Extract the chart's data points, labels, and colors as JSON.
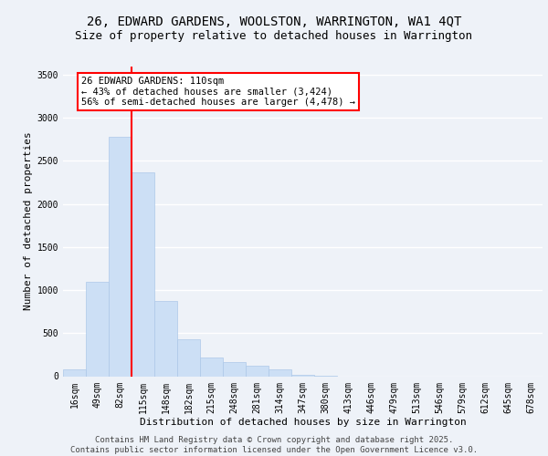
{
  "title_line1": "26, EDWARD GARDENS, WOOLSTON, WARRINGTON, WA1 4QT",
  "title_line2": "Size of property relative to detached houses in Warrington",
  "xlabel": "Distribution of detached houses by size in Warrington",
  "ylabel": "Number of detached properties",
  "footer_line1": "Contains HM Land Registry data © Crown copyright and database right 2025.",
  "footer_line2": "Contains public sector information licensed under the Open Government Licence v3.0.",
  "categories": [
    "16sqm",
    "49sqm",
    "82sqm",
    "115sqm",
    "148sqm",
    "182sqm",
    "215sqm",
    "248sqm",
    "281sqm",
    "314sqm",
    "347sqm",
    "380sqm",
    "413sqm",
    "446sqm",
    "479sqm",
    "513sqm",
    "546sqm",
    "579sqm",
    "612sqm",
    "645sqm",
    "678sqm"
  ],
  "values": [
    75,
    1100,
    2780,
    2370,
    870,
    430,
    215,
    165,
    120,
    75,
    20,
    10,
    0,
    0,
    0,
    0,
    0,
    0,
    0,
    0,
    0
  ],
  "bar_color": "#ccdff5",
  "bar_edgecolor": "#adc8e8",
  "vline_color": "red",
  "vline_pos": 2.5,
  "annotation_text": "26 EDWARD GARDENS: 110sqm\n← 43% of detached houses are smaller (3,424)\n56% of semi-detached houses are larger (4,478) →",
  "annotation_box_facecolor": "white",
  "annotation_box_edgecolor": "red",
  "ylim": [
    0,
    3600
  ],
  "yticks": [
    0,
    500,
    1000,
    1500,
    2000,
    2500,
    3000,
    3500
  ],
  "background_color": "#eef2f8",
  "plot_background": "#eef2f8",
  "grid_color": "white",
  "title_fontsize": 10,
  "subtitle_fontsize": 9,
  "axis_label_fontsize": 8,
  "tick_fontsize": 7,
  "footer_fontsize": 6.5,
  "annotation_fontsize": 7.5
}
